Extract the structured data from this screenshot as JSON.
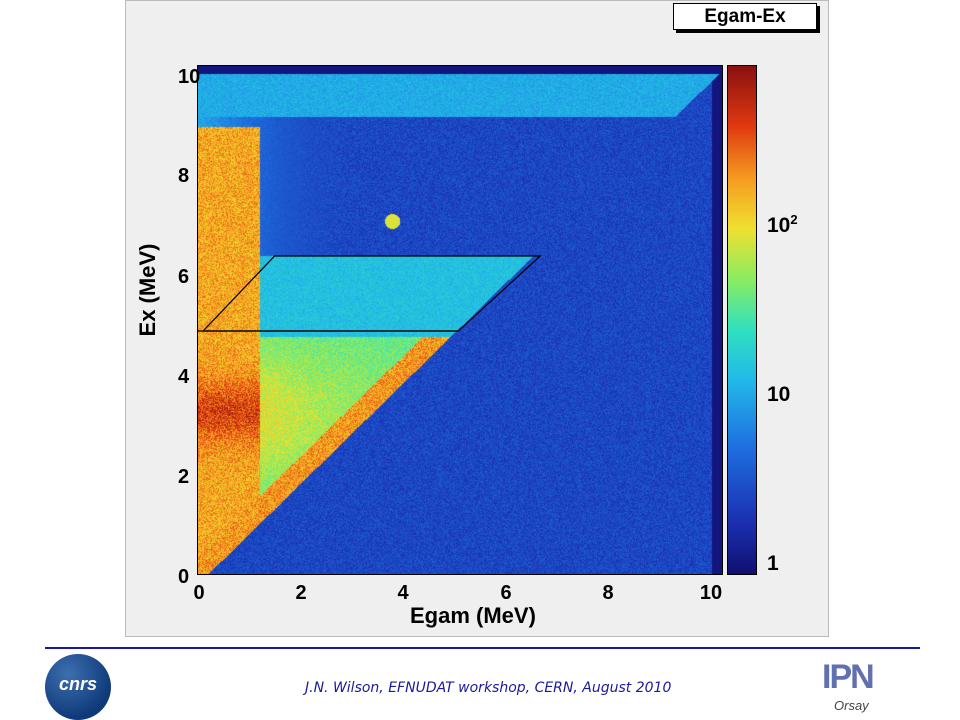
{
  "chart_data": {
    "type": "heatmap",
    "title": "Egam-Ex",
    "xlabel": "Egam (MeV)",
    "ylabel": "Ex (MeV)",
    "xlim": [
      0,
      10.3
    ],
    "ylim": [
      0,
      10.2
    ],
    "xticks": [
      "0",
      "2",
      "4",
      "6",
      "8",
      "10"
    ],
    "yticks": [
      "0",
      "2",
      "4",
      "6",
      "8",
      "10"
    ],
    "colorscale": "log",
    "colorbar_labels": {
      "one": "1",
      "ten": "10",
      "hundred_base": "10",
      "hundred_exp": "2"
    },
    "colors": {
      "low": "#101070",
      "mid": "#22b8e8",
      "high": "#e03a10",
      "peak": "#8a1010"
    },
    "gate_polygon": [
      [
        0.1,
        4.9
      ],
      [
        1.5,
        6.4
      ],
      [
        6.7,
        6.4
      ],
      [
        5.1,
        4.9
      ]
    ],
    "gate_line": [
      [
        0.0,
        4.9
      ],
      [
        5.1,
        4.9
      ]
    ],
    "features": [
      {
        "desc": "diagonal Egam = Ex boundary",
        "from": [
          0,
          0
        ],
        "to": [
          4.8,
          4.8
        ]
      },
      {
        "desc": "intense low-Egam band",
        "egam": [
          0.1,
          1.2
        ],
        "ex": [
          0.3,
          9.0
        ]
      },
      {
        "desc": "hot spot",
        "egam": 3.8,
        "ex": 7.1
      }
    ]
  },
  "footer": {
    "text": "J.N. Wilson,  EFNUDAT workshop, CERN, August 2010",
    "left_logo": "cnrs",
    "right_logo_main": "IPN",
    "right_logo_sub": "Orsay"
  }
}
